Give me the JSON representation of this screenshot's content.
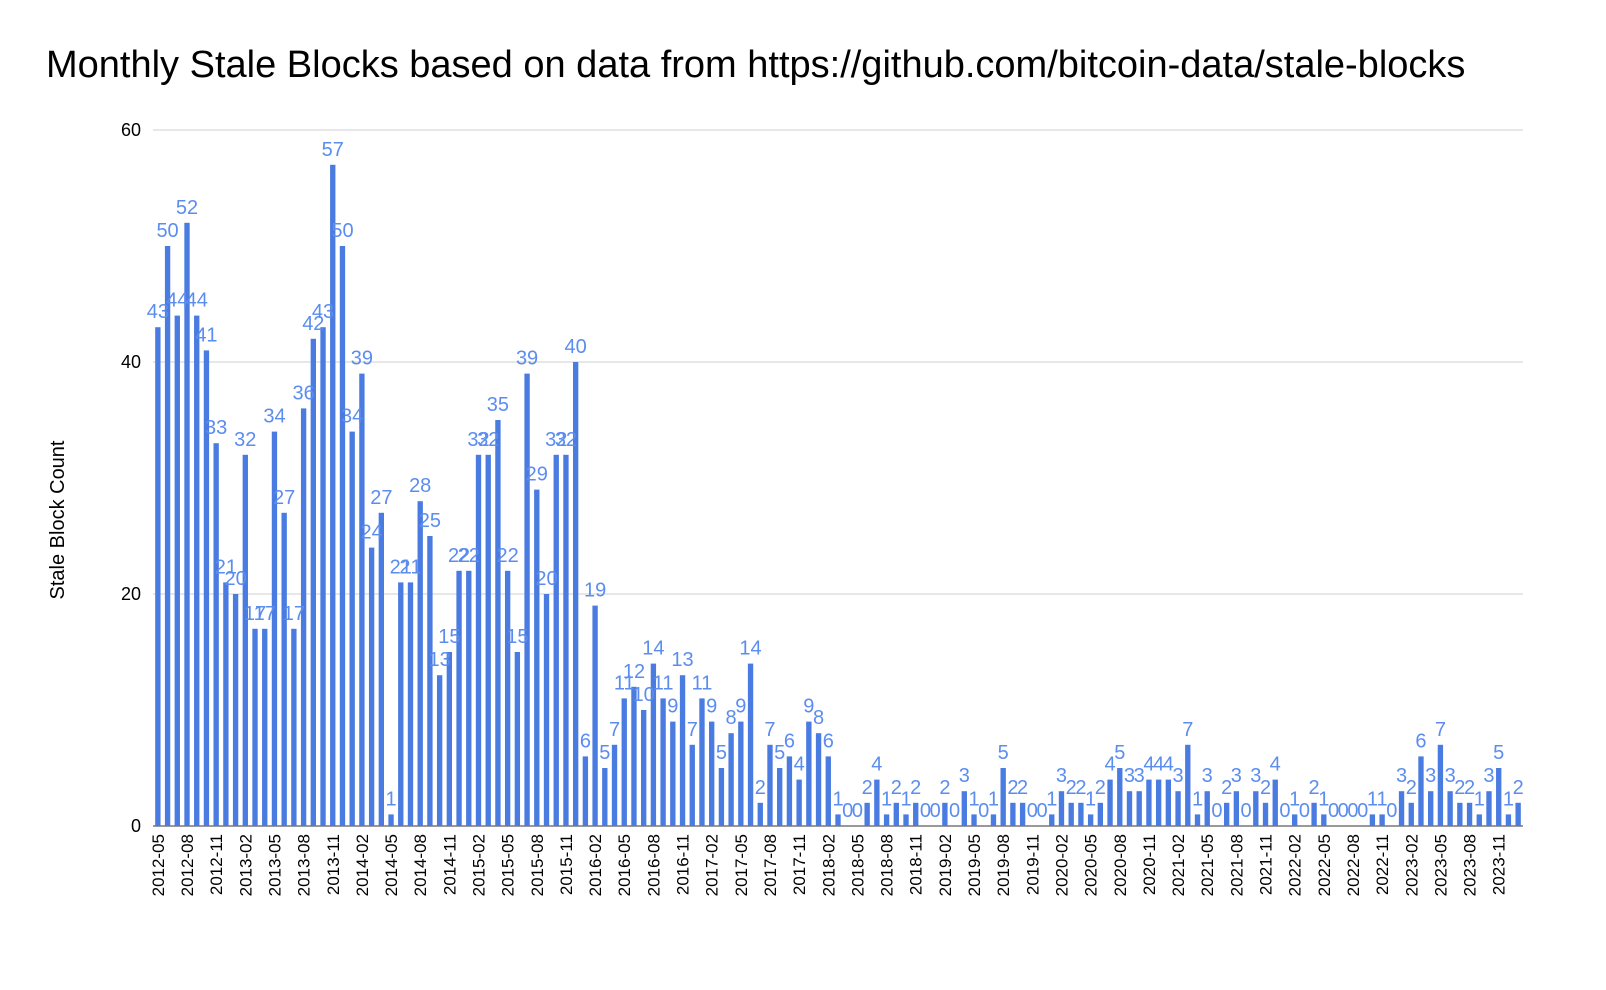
{
  "chart_data": {
    "type": "bar",
    "title": "Monthly Stale Blocks based on data from https://github.com/bitcoin-data/stale-blocks",
    "xlabel": "",
    "ylabel": "Stale Block Count",
    "ylim": [
      0,
      60
    ],
    "yticks": [
      0,
      20,
      40,
      60
    ],
    "grid": true,
    "legend": "none",
    "bar_color": "#4a7be0",
    "label_color": "#5b8def",
    "start_month": "2012-05",
    "tick_labels": [
      "2012-05",
      "2012-08",
      "2012-11",
      "2013-02",
      "2013-05",
      "2013-08",
      "2013-11",
      "2014-02",
      "2014-05",
      "2014-08",
      "2014-11",
      "2015-02",
      "2015-05",
      "2015-08",
      "2015-11",
      "2016-02",
      "2016-05",
      "2016-08",
      "2016-11",
      "2017-02",
      "2017-05",
      "2017-08",
      "2017-11",
      "2018-02",
      "2018-05",
      "2018-08",
      "2018-11",
      "2019-02",
      "2019-05",
      "2019-08",
      "2019-11",
      "2020-02",
      "2020-05",
      "2020-08",
      "2020-11",
      "2021-02",
      "2021-05",
      "2021-08",
      "2021-11",
      "2022-02",
      "2022-05",
      "2022-08",
      "2022-11",
      "2023-02",
      "2023-05",
      "2023-08",
      "2023-11"
    ],
    "values": [
      43,
      50,
      44,
      52,
      44,
      41,
      33,
      21,
      20,
      32,
      17,
      17,
      34,
      27,
      17,
      36,
      42,
      43,
      57,
      50,
      34,
      39,
      24,
      27,
      1,
      21,
      21,
      28,
      25,
      13,
      15,
      22,
      22,
      32,
      32,
      35,
      22,
      15,
      39,
      29,
      20,
      32,
      32,
      40,
      6,
      19,
      5,
      7,
      11,
      12,
      10,
      14,
      11,
      9,
      13,
      7,
      11,
      9,
      5,
      8,
      9,
      14,
      2,
      7,
      5,
      6,
      4,
      9,
      8,
      6,
      1,
      0,
      0,
      2,
      4,
      1,
      2,
      1,
      2,
      0,
      0,
      2,
      0,
      3,
      1,
      0,
      1,
      5,
      2,
      2,
      0,
      0,
      1,
      3,
      2,
      2,
      1,
      2,
      4,
      5,
      3,
      3,
      4,
      4,
      4,
      3,
      7,
      1,
      3,
      0,
      2,
      3,
      0,
      3,
      2,
      4,
      0,
      1,
      0,
      2,
      1,
      0,
      0,
      0,
      0,
      1,
      1,
      0,
      3,
      2,
      6,
      3,
      7,
      3,
      2,
      2,
      1,
      3,
      5,
      1,
      2
    ]
  }
}
